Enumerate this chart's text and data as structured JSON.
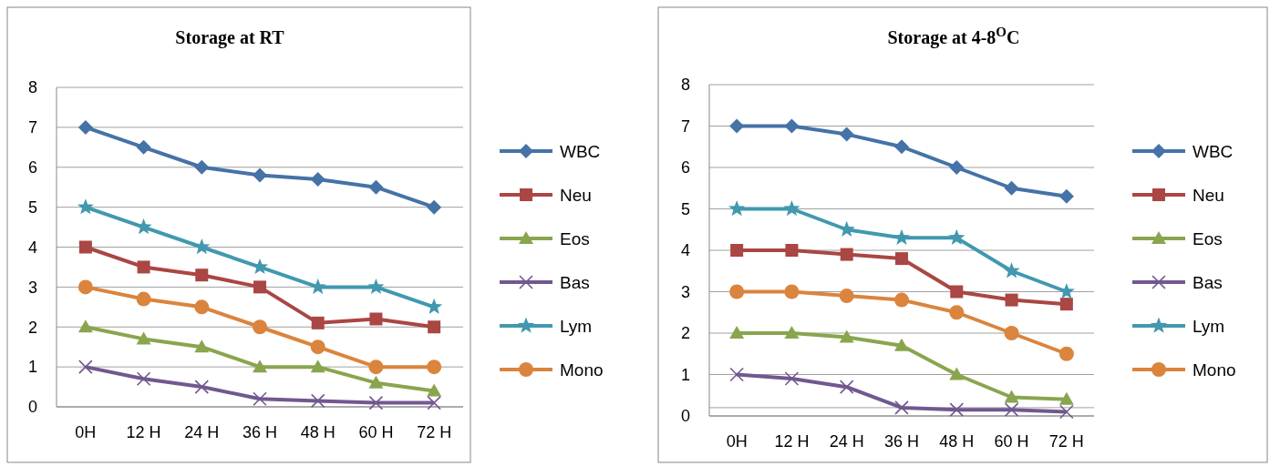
{
  "chart_data": [
    {
      "type": "line",
      "title": "Storage at RT",
      "categories": [
        "0H",
        "12 H",
        "24 H",
        "36 H",
        "48 H",
        "60 H",
        "72 H"
      ],
      "ylim": [
        0,
        8
      ],
      "yticks": [
        0,
        1,
        2,
        3,
        4,
        5,
        6,
        7,
        8
      ],
      "grid": "y",
      "legend": "right",
      "series": [
        {
          "name": "WBC",
          "color": "#4572a7",
          "marker": "diamond",
          "values": [
            7,
            6.5,
            6,
            5.8,
            5.7,
            5.5,
            5
          ]
        },
        {
          "name": "Neu",
          "color": "#aa4643",
          "marker": "square",
          "values": [
            4,
            3.5,
            3.3,
            3,
            2.1,
            2.2,
            2
          ]
        },
        {
          "name": "Eos",
          "color": "#89a54e",
          "marker": "triangle",
          "values": [
            2,
            1.7,
            1.5,
            1,
            1,
            0.6,
            0.4
          ]
        },
        {
          "name": "Bas",
          "color": "#71588f",
          "marker": "cross",
          "values": [
            1,
            0.7,
            0.5,
            0.2,
            0.15,
            0.1,
            0.1
          ]
        },
        {
          "name": "Lym",
          "color": "#4198af",
          "marker": "star",
          "values": [
            5,
            4.5,
            4,
            3.5,
            3,
            3,
            2.5
          ]
        },
        {
          "name": "Mono",
          "color": "#db843d",
          "marker": "circle",
          "values": [
            3,
            2.7,
            2.5,
            2,
            1.5,
            1,
            1
          ]
        }
      ]
    },
    {
      "type": "line",
      "title": "Storage at 4-8$^{O}$C",
      "categories": [
        "0H",
        "12 H",
        "24 H",
        "36 H",
        "48 H",
        "60 H",
        "72 H"
      ],
      "ylim": [
        0,
        8
      ],
      "yticks": [
        0,
        1,
        2,
        3,
        4,
        5,
        6,
        7,
        8
      ],
      "grid": "y",
      "legend": "right",
      "ref_lines": [
        {
          "axis": "y",
          "value": 0.2,
          "label": null,
          "color": "#a0a0a0"
        }
      ],
      "series": [
        {
          "name": "WBC",
          "color": "#4572a7",
          "marker": "diamond",
          "values": [
            7,
            7,
            6.8,
            6.5,
            6,
            5.5,
            5.3
          ]
        },
        {
          "name": "Neu",
          "color": "#aa4643",
          "marker": "square",
          "values": [
            4,
            4,
            3.9,
            3.8,
            3,
            2.8,
            2.7
          ]
        },
        {
          "name": "Eos",
          "color": "#89a54e",
          "marker": "triangle",
          "values": [
            2,
            2,
            1.9,
            1.7,
            1,
            0.45,
            0.4
          ]
        },
        {
          "name": "Bas",
          "color": "#71588f",
          "marker": "cross",
          "values": [
            1,
            0.9,
            0.7,
            0.2,
            0.15,
            0.15,
            0.1
          ]
        },
        {
          "name": "Lym",
          "color": "#4198af",
          "marker": "star",
          "values": [
            5,
            5,
            4.5,
            4.3,
            4.3,
            3.5,
            3
          ]
        },
        {
          "name": "Mono",
          "color": "#db843d",
          "marker": "circle",
          "values": [
            3,
            3,
            2.9,
            2.8,
            2.5,
            2,
            1.5
          ]
        }
      ]
    }
  ]
}
